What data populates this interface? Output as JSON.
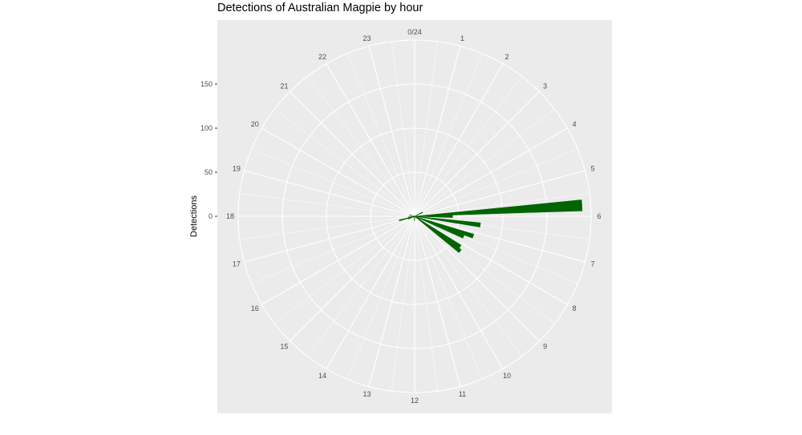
{
  "chart_data": {
    "type": "bar",
    "coord": "polar",
    "title": "Detections of Australian Magpie by hour",
    "ylabel": "Detections",
    "xlabel": "",
    "categories": [
      "0/24",
      "1",
      "2",
      "3",
      "4",
      "5",
      "6",
      "7",
      "8",
      "9",
      "10",
      "11",
      "12",
      "13",
      "14",
      "15",
      "16",
      "17",
      "18",
      "19",
      "20",
      "21",
      "22",
      "23"
    ],
    "bars": [
      {
        "hour": 12.0,
        "value": 3
      },
      {
        "hour": 12.25,
        "value": 5
      },
      {
        "hour": 7.5,
        "value": 60
      },
      {
        "hour": 8.25,
        "value": 62
      },
      {
        "hour": 8.5,
        "value": 65
      },
      {
        "hour": 5.75,
        "value": 190
      },
      {
        "hour": 6.0,
        "value": 43
      },
      {
        "hour": 6.5,
        "value": 75
      },
      {
        "hour": 7.25,
        "value": 70
      },
      {
        "hour": 4.25,
        "value": 10
      },
      {
        "hour": 17.0,
        "value": 18
      },
      {
        "hour": 17.5,
        "value": 7
      },
      {
        "hour": 16.5,
        "value": 8
      },
      {
        "hour": 19.0,
        "value": 6
      },
      {
        "hour": 14.75,
        "value": 2
      }
    ],
    "bar_color": "#006400",
    "bin_width_hours": 0.25,
    "yticks": [
      0,
      50,
      100,
      150
    ],
    "ylim": [
      0,
      200
    ],
    "grid": true,
    "panel_background": "#ebebeb",
    "grid_color": "#ffffff"
  }
}
